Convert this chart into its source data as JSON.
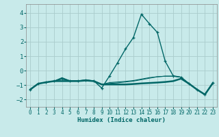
{
  "title": "",
  "xlabel": "Humidex (Indice chaleur)",
  "background_color": "#c8eaea",
  "grid_color": "#aacccc",
  "line_color": "#006666",
  "xlim": [
    -0.5,
    23.5
  ],
  "ylim": [
    -2.5,
    4.6
  ],
  "yticks": [
    -2,
    -1,
    0,
    1,
    2,
    3,
    4
  ],
  "xticks": [
    0,
    1,
    2,
    3,
    4,
    5,
    6,
    7,
    8,
    9,
    10,
    11,
    12,
    13,
    14,
    15,
    16,
    17,
    18,
    19,
    20,
    21,
    22,
    23
  ],
  "lines": [
    {
      "x": [
        0,
        1,
        2,
        3,
        4,
        5,
        6,
        7,
        8,
        9,
        10,
        11,
        12,
        13,
        14,
        15,
        16,
        17,
        18,
        19,
        20,
        21,
        22,
        23
      ],
      "y": [
        -1.3,
        -0.9,
        -0.8,
        -0.72,
        -0.58,
        -0.7,
        -0.7,
        -0.65,
        -0.7,
        -1.2,
        -0.35,
        0.55,
        1.5,
        2.3,
        3.9,
        3.25,
        2.65,
        0.65,
        -0.35,
        -0.45,
        -0.9,
        -1.3,
        -1.65,
        -0.85
      ],
      "lw": 1.0,
      "markers": true
    },
    {
      "x": [
        0,
        1,
        2,
        3,
        4,
        5,
        6,
        7,
        8,
        9,
        10,
        11,
        12,
        13,
        14,
        15,
        16,
        17,
        18,
        19,
        20,
        21,
        22,
        23
      ],
      "y": [
        -1.3,
        -0.9,
        -0.8,
        -0.72,
        -0.52,
        -0.7,
        -0.7,
        -0.65,
        -0.7,
        -0.95,
        -0.82,
        -0.78,
        -0.74,
        -0.68,
        -0.58,
        -0.48,
        -0.42,
        -0.38,
        -0.38,
        -0.45,
        -0.9,
        -1.3,
        -1.65,
        -0.85
      ],
      "lw": 0.8,
      "markers": false
    },
    {
      "x": [
        0,
        1,
        2,
        3,
        4,
        5,
        6,
        7,
        8,
        9,
        10,
        11,
        12,
        13,
        14,
        15,
        16,
        17,
        18,
        19,
        20,
        21,
        22,
        23
      ],
      "y": [
        -1.3,
        -0.9,
        -0.8,
        -0.72,
        -0.48,
        -0.7,
        -0.7,
        -0.65,
        -0.7,
        -0.95,
        -0.88,
        -0.84,
        -0.78,
        -0.72,
        -0.62,
        -0.52,
        -0.42,
        -0.38,
        -0.38,
        -0.45,
        -0.9,
        -1.3,
        -1.65,
        -0.85
      ],
      "lw": 0.8,
      "markers": false
    },
    {
      "x": [
        0,
        1,
        2,
        3,
        4,
        5,
        6,
        7,
        8,
        9,
        10,
        11,
        12,
        13,
        14,
        15,
        16,
        17,
        18,
        19,
        20,
        21,
        22,
        23
      ],
      "y": [
        -1.3,
        -0.9,
        -0.8,
        -0.72,
        -0.72,
        -0.72,
        -0.72,
        -0.68,
        -0.72,
        -0.95,
        -0.95,
        -0.95,
        -0.95,
        -0.92,
        -0.88,
        -0.85,
        -0.82,
        -0.78,
        -0.72,
        -0.55,
        -0.9,
        -1.3,
        -1.65,
        -0.85
      ],
      "lw": 1.8,
      "markers": false
    }
  ]
}
